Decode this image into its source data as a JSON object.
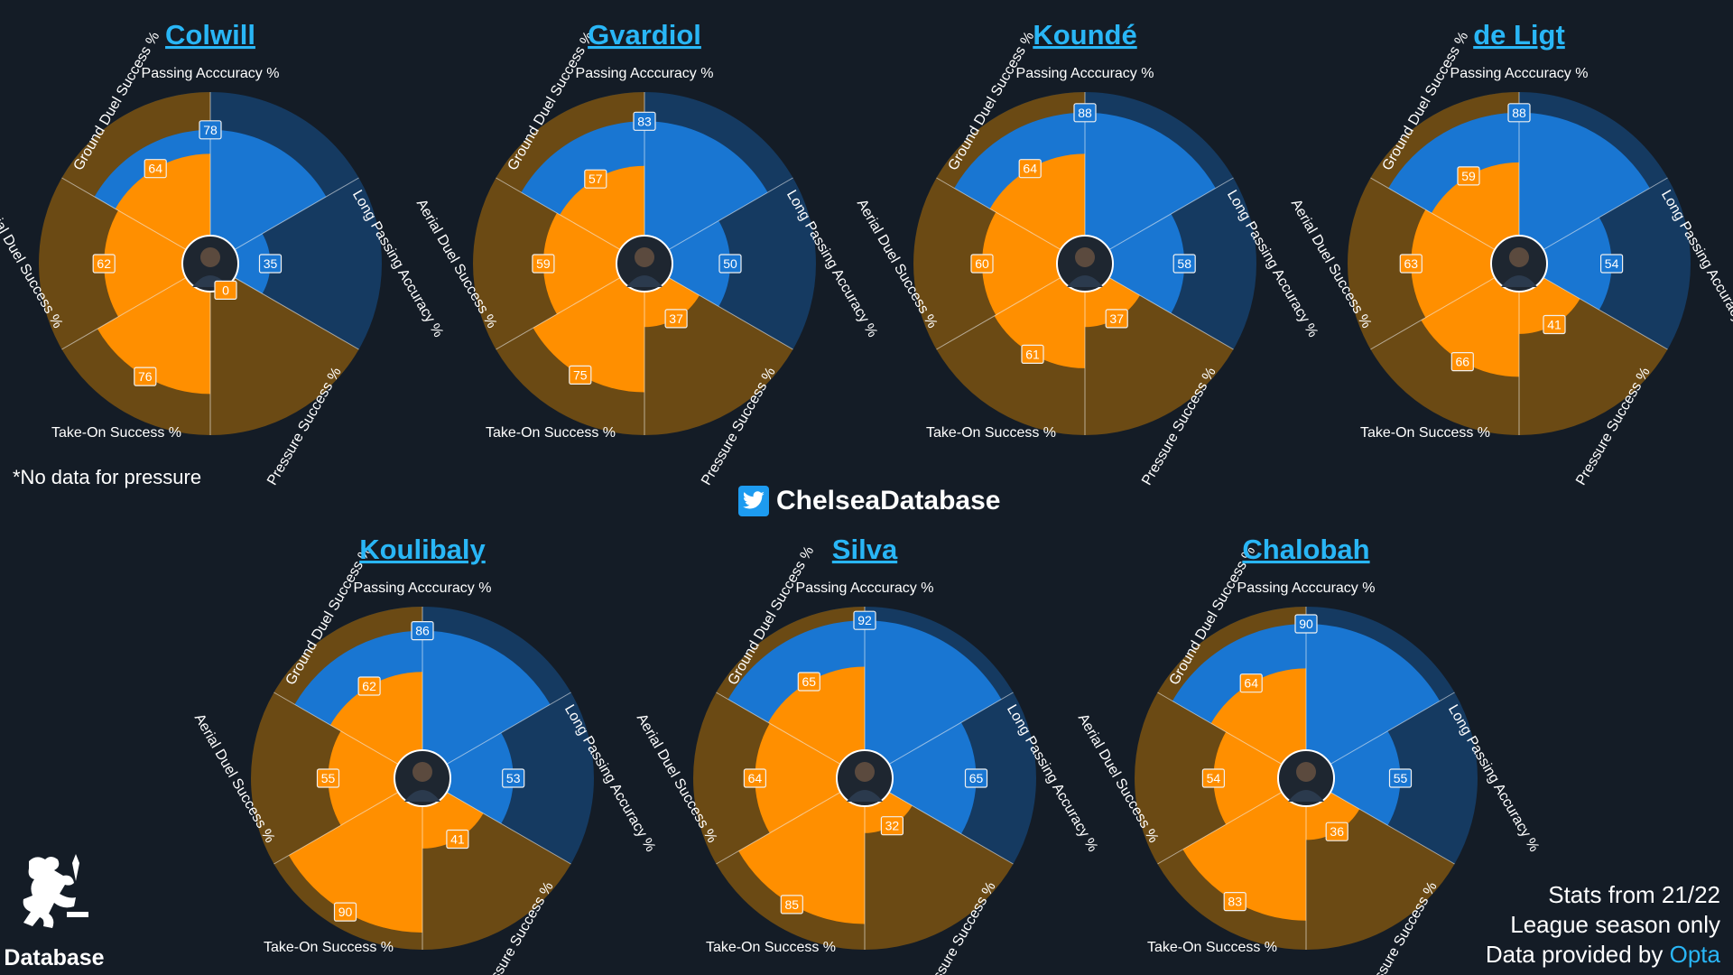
{
  "note": "*No data for pressure",
  "brand": {
    "handle": "ChelseaDatabase",
    "icon": "twitter-bird-icon"
  },
  "footer": {
    "line1": "Stats from 21/22",
    "line2": "League season only",
    "line3_prefix": "Data provided by",
    "line3_source": "Opta"
  },
  "logo": {
    "icon": "chelsea-lion-crest-icon",
    "text": "Database"
  },
  "colors": {
    "background": "#141c26",
    "passing_fill": "#1976d2",
    "passing_bg": "#153a61",
    "duel_fill": "#ff8f00",
    "duel_bg": "#6b4a14",
    "title": "#29b6f6"
  },
  "chart_data": [
    {
      "type": "pie",
      "title": "Colwill",
      "axis_labels": [
        "Passing Acccuracy %",
        "Long Passing Accuracy %",
        "Pressure Success %",
        "Take-On Success %",
        "Aerial Duel Success %",
        "Ground Duel Success %"
      ],
      "values": [
        78,
        35,
        0,
        76,
        62,
        64
      ],
      "value_labels": [
        "78",
        "35",
        "0",
        "76",
        "62",
        "64"
      ],
      "rlim": [
        0,
        100
      ]
    },
    {
      "type": "pie",
      "title": "Gvardiol",
      "axis_labels": [
        "Passing Acccuracy %",
        "Long Passing Accuracy %",
        "Pressure Success %",
        "Take-On Success %",
        "Aerial Duel Success %",
        "Ground Duel Success %"
      ],
      "values": [
        83,
        50,
        37,
        75,
        59,
        57
      ],
      "value_labels": [
        "83",
        "50",
        "37",
        "75",
        "59",
        "57"
      ],
      "rlim": [
        0,
        100
      ]
    },
    {
      "type": "pie",
      "title": "Koundé",
      "axis_labels": [
        "Passing Acccuracy %",
        "Long Passing Accuracy %",
        "Pressure Success %",
        "Take-On Success %",
        "Aerial Duel Success %",
        "Ground Duel Success %"
      ],
      "values": [
        88,
        58,
        37,
        61,
        60,
        64
      ],
      "value_labels": [
        "88",
        "58",
        "37",
        "61",
        "60",
        "64"
      ],
      "rlim": [
        0,
        100
      ]
    },
    {
      "type": "pie",
      "title": "de Ligt",
      "axis_labels": [
        "Passing Acccuracy %",
        "Long Passing Accuracy %",
        "Pressure Success %",
        "Take-On Success %",
        "Aerial Duel Success %",
        "Ground Duel Success %"
      ],
      "values": [
        88,
        54,
        41,
        66,
        63,
        59
      ],
      "value_labels": [
        "88",
        "54",
        "41",
        "66",
        "63",
        "59"
      ],
      "rlim": [
        0,
        100
      ]
    },
    {
      "type": "pie",
      "title": "Koulibaly",
      "axis_labels": [
        "Passing Acccuracy %",
        "Long Passing Accuracy %",
        "Pressure Success %",
        "Take-On Success %",
        "Aerial Duel Success %",
        "Ground Duel Success %"
      ],
      "values": [
        86,
        53,
        41,
        90,
        55,
        62
      ],
      "value_labels": [
        "86",
        "53",
        "41",
        "90",
        "55",
        "62"
      ],
      "rlim": [
        0,
        100
      ]
    },
    {
      "type": "pie",
      "title": "Silva",
      "axis_labels": [
        "Passing Acccuracy %",
        "Long Passing Accuracy %",
        "Pressure Success %",
        "Take-On Success %",
        "Aerial Duel Success %",
        "Ground Duel Success %"
      ],
      "values": [
        92,
        65,
        32,
        85,
        64,
        65
      ],
      "value_labels": [
        "92",
        "65",
        "32",
        "85",
        "64",
        "65"
      ],
      "rlim": [
        0,
        100
      ]
    },
    {
      "type": "pie",
      "title": "Chalobah",
      "axis_labels": [
        "Passing Acccuracy %",
        "Long Passing Accuracy %",
        "Pressure Success %",
        "Take-On Success %",
        "Aerial Duel Success %",
        "Ground Duel Success %"
      ],
      "values": [
        90,
        55,
        36,
        83,
        54,
        64
      ],
      "value_labels": [
        "90",
        "55",
        "36",
        "83",
        "54",
        "64"
      ],
      "rlim": [
        0,
        100
      ]
    }
  ]
}
